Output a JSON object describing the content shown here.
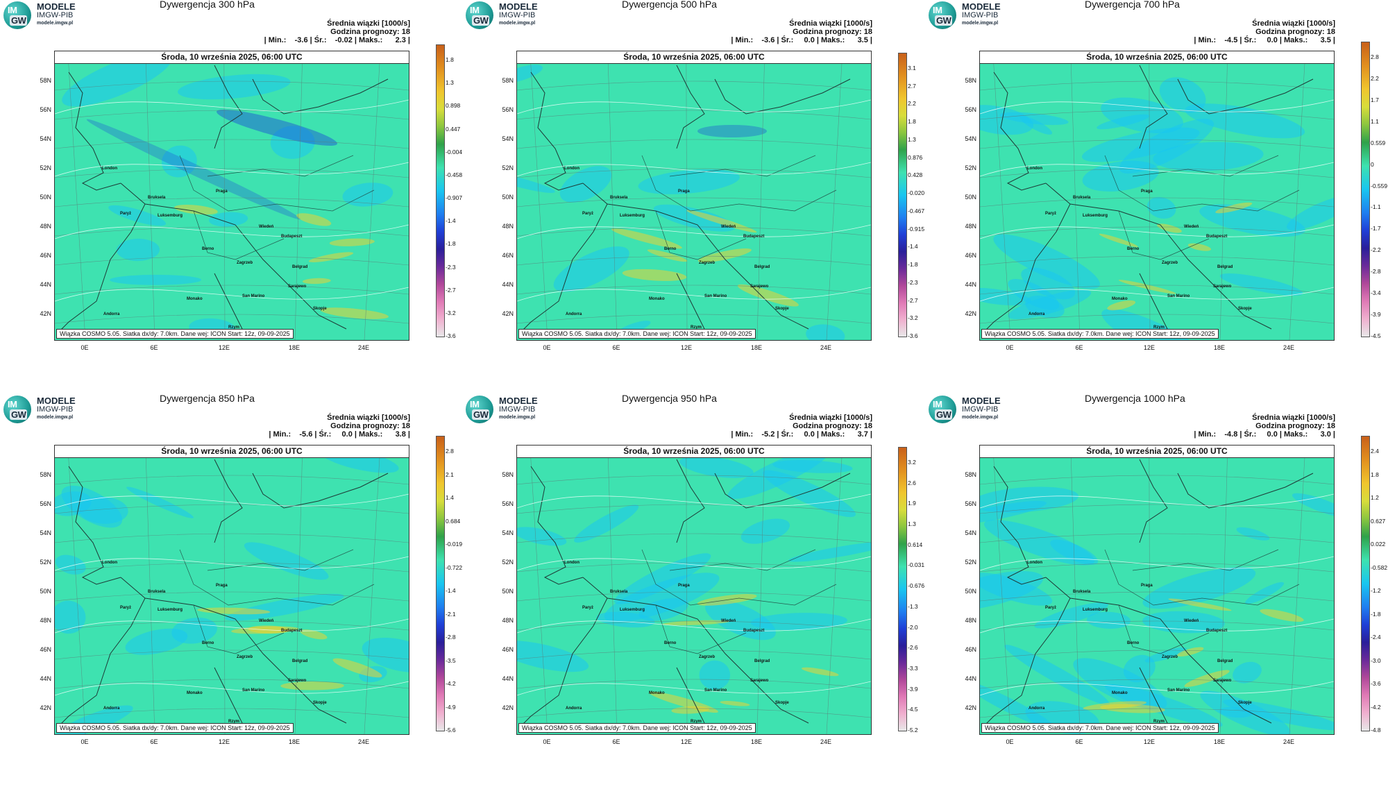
{
  "logo": {
    "line1": "MODELE",
    "line2": "IMGW-PIB",
    "line3": "modele.imgw.pl",
    "badge_top": "IM",
    "badge_bottom": "GW"
  },
  "common": {
    "legend_title": "Średnia wiązki [1000/s]",
    "forecast_hour": "Godzina prognozy: 18",
    "date": "Środa, 10 września 2025, 06:00 UTC",
    "footer": "Wiązka  COSMO 5.05. Siatka dx/dy: 7.0km. Dane wej: ICON Start: 12z, 09-09-2025",
    "lat_labels": [
      "58N",
      "56N",
      "54N",
      "52N",
      "50N",
      "48N",
      "46N",
      "44N",
      "42N"
    ],
    "lon_labels": [
      "0E",
      "6E",
      "12E",
      "18E",
      "24E"
    ],
    "cities": [
      "London",
      "Paryż",
      "Bruksela",
      "Luksemburg",
      "Praga",
      "Wiedeń",
      "Budapeszt",
      "Berno",
      "Zagrzeb",
      "Belgrad",
      "Sarajewo",
      "San Marino",
      "Monako",
      "Andorra",
      "Skopje",
      "Rzym"
    ],
    "colors": {
      "field": "#3ee2b0",
      "neg": "#19c6f0",
      "pos": "#f5d22a",
      "strong_neg": "#1a4bd6"
    }
  },
  "panels": [
    {
      "title": "Dywergencja 300 hPa",
      "stats": "| Min.:    -3.6 | Śr.:    -0.02 | Maks.:      2.3 |",
      "colorbar": [
        "1.8",
        "1.3",
        "0.898",
        "0.447",
        "-0.004",
        "-0.458",
        "-0.907",
        "-1.4",
        "-1.8",
        "-2.3",
        "-2.7",
        "-3.2",
        "-3.6"
      ]
    },
    {
      "title": "Dywergencja 500 hPa",
      "stats": "| Min.:    -3.6 | Śr.:     0.0 | Maks.:      3.5 |",
      "colorbar": [
        "3.1",
        "2.7",
        "2.2",
        "1.8",
        "1.3",
        "0.876",
        "0.428",
        "-0.020",
        "-0.467",
        "-0.915",
        "-1.4",
        "-1.8",
        "-2.3",
        "-2.7",
        "-3.2",
        "-3.6"
      ]
    },
    {
      "title": "Dywergencja 700 hPa",
      "stats": "| Min.:    -4.5 | Śr.:     0.0 | Maks.:      3.5 |",
      "colorbar": [
        "2.8",
        "2.2",
        "1.7",
        "1.1",
        "0.559",
        "0",
        "-0.559",
        "-1.1",
        "-1.7",
        "-2.2",
        "-2.8",
        "-3.4",
        "-3.9",
        "-4.5"
      ]
    },
    {
      "title": "Dywergencja 850 hPa",
      "stats": "| Min.:    -5.6 | Śr.:     0.0 | Maks.:      3.8 |",
      "colorbar": [
        "2.8",
        "2.1",
        "1.4",
        "0.684",
        "-0.019",
        "-0.722",
        "-1.4",
        "-2.1",
        "-2.8",
        "-3.5",
        "-4.2",
        "-4.9",
        "-5.6"
      ]
    },
    {
      "title": "Dywergencja 950 hPa",
      "stats": "| Min.:    -5.2 | Śr.:     0.0 | Maks.:      3.7 |",
      "colorbar": [
        "3.2",
        "2.6",
        "1.9",
        "1.3",
        "0.614",
        "-0.031",
        "-0.676",
        "-1.3",
        "-2.0",
        "-2.6",
        "-3.3",
        "-3.9",
        "-4.5",
        "-5.2"
      ]
    },
    {
      "title": "Dywergencja 1000 hPa",
      "stats": "| Min.:    -4.8 | Śr.:     0.0 | Maks.:      3.0 |",
      "colorbar": [
        "2.4",
        "1.8",
        "1.2",
        "0.627",
        "0.022",
        "-0.582",
        "-1.2",
        "-1.8",
        "-2.4",
        "-3.0",
        "-3.6",
        "-4.2",
        "-4.8"
      ]
    }
  ]
}
